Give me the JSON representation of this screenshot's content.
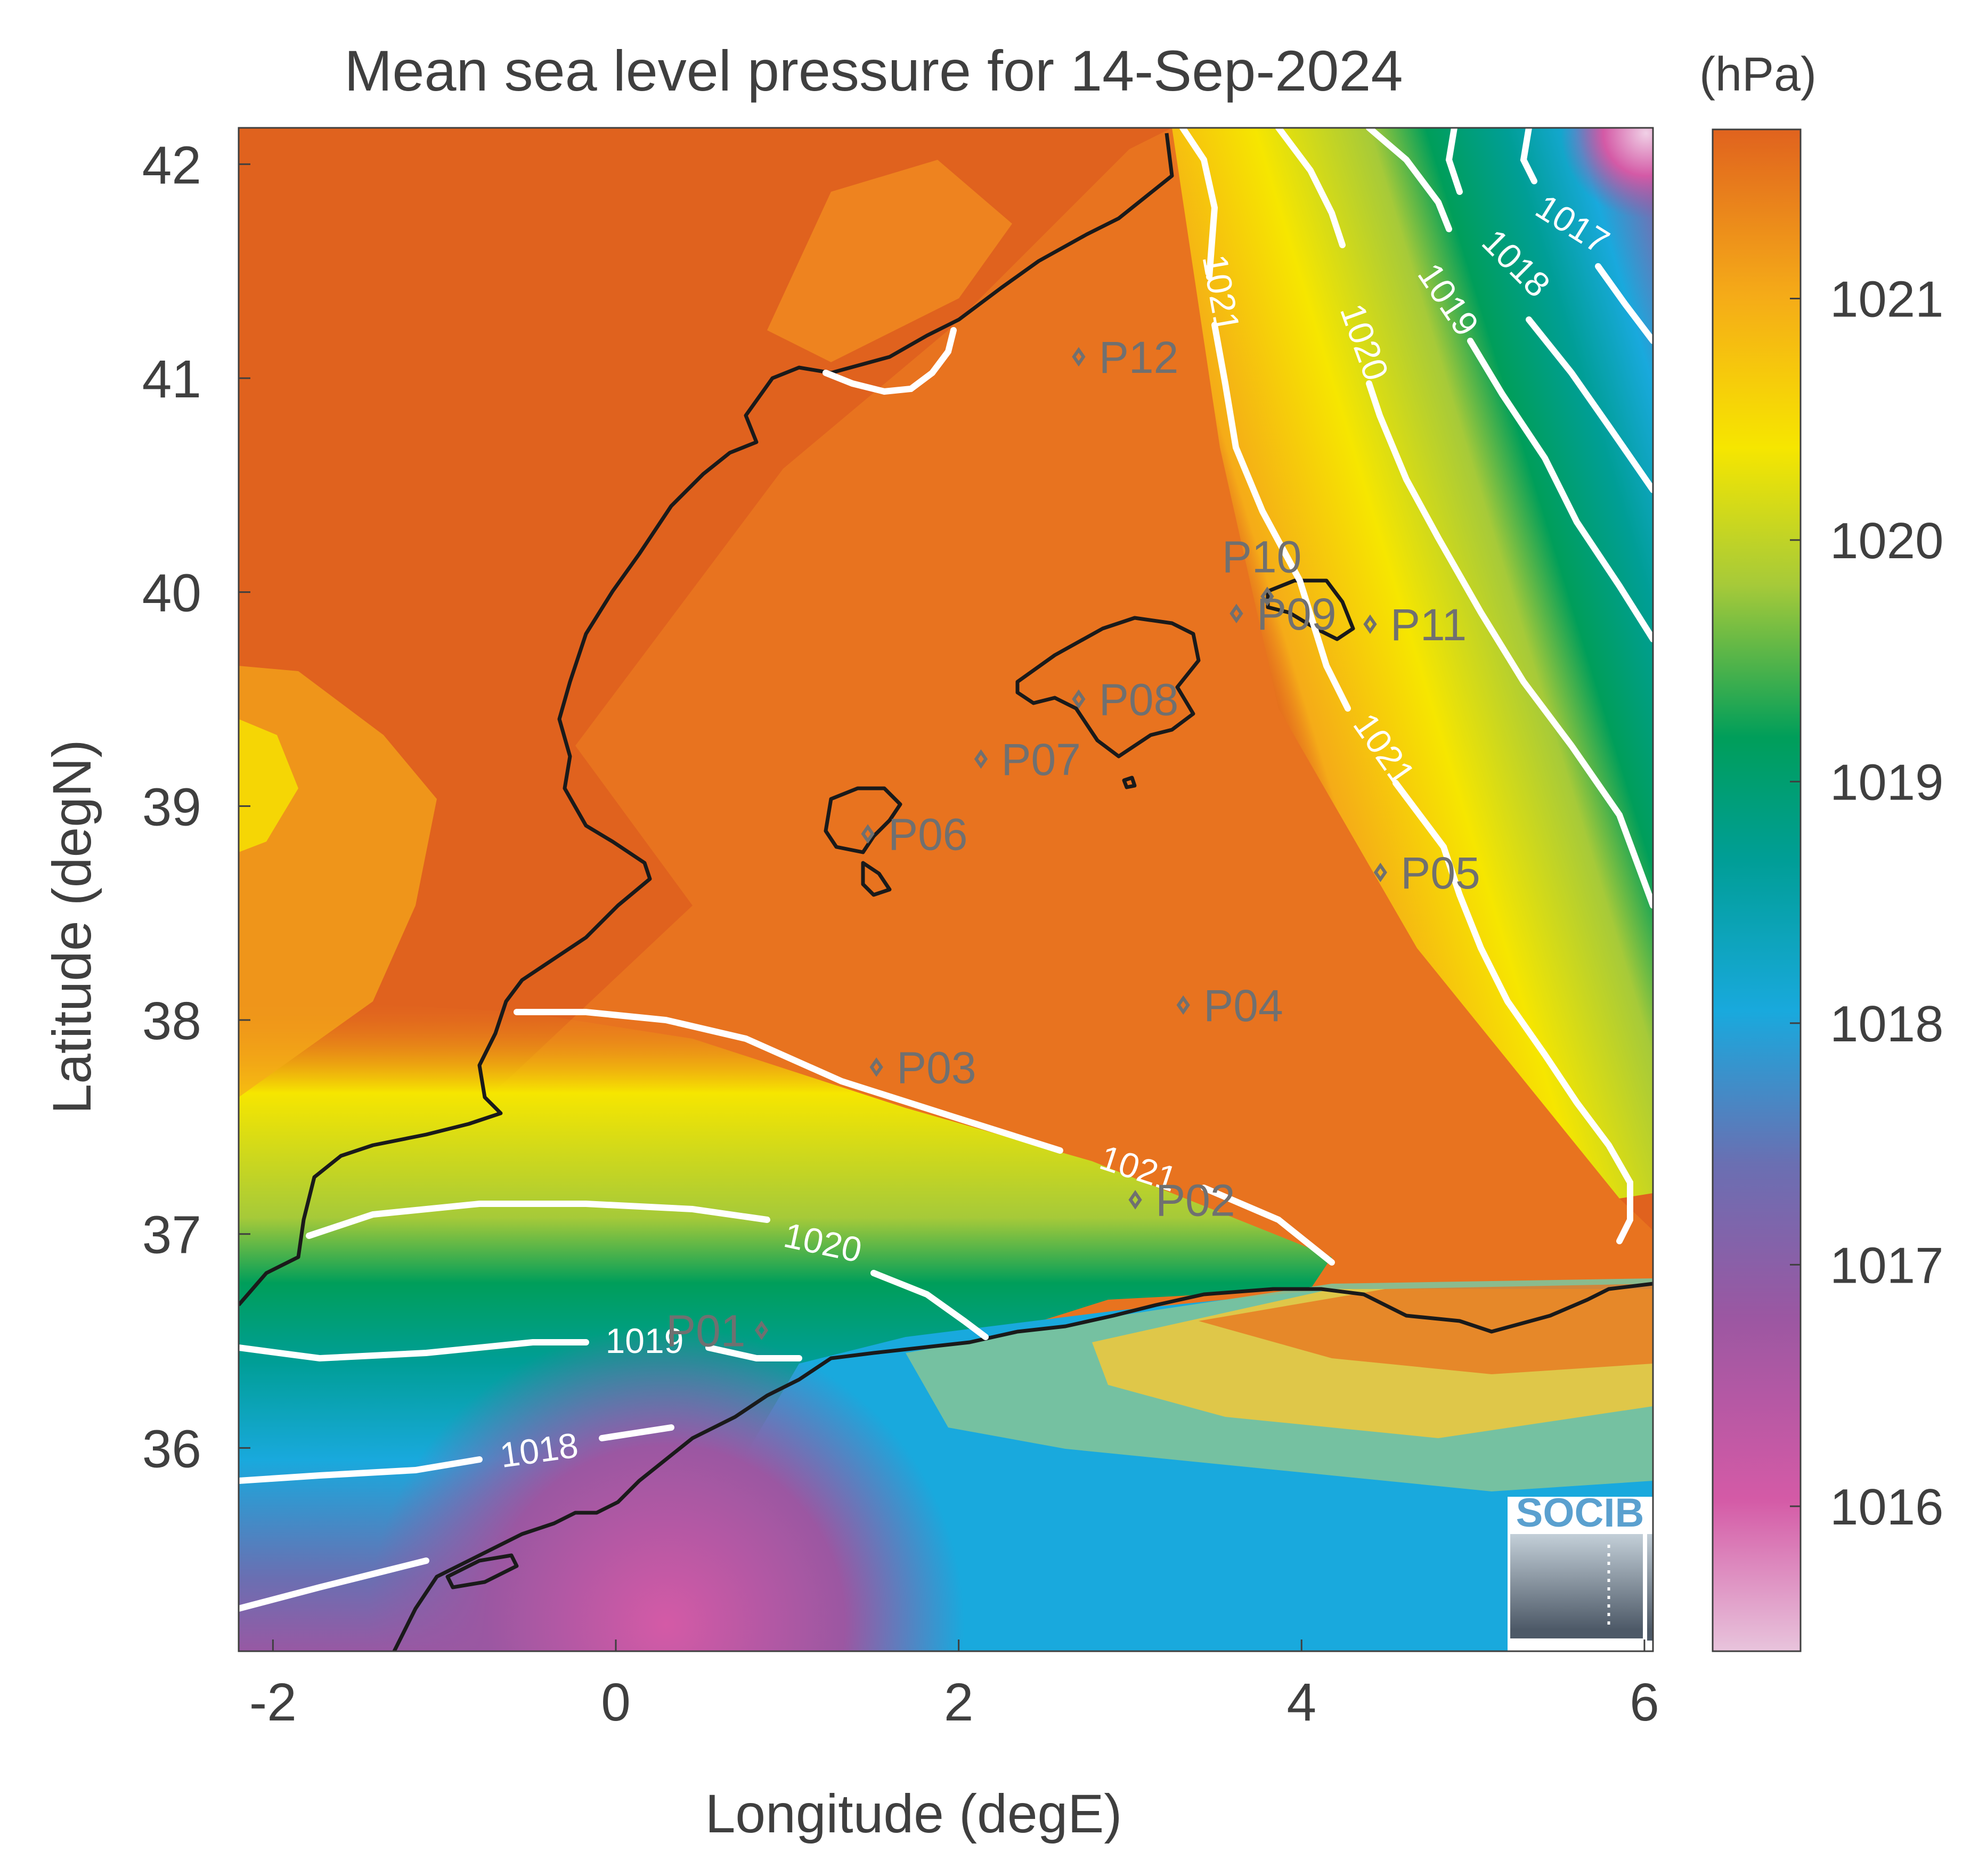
{
  "title": "Mean sea level pressure for 14-Sep-2024",
  "xlabel": "Longitude (degE)",
  "ylabel": "Latitude (degN)",
  "colorbar": {
    "unit": "(hPa)",
    "min": 1015.4,
    "max": 1021.7,
    "ticks": [
      "1016",
      "1017",
      "1018",
      "1019",
      "1020",
      "1021"
    ],
    "tick_values": [
      1016,
      1017,
      1018,
      1019,
      1020,
      1021
    ],
    "colormap": [
      "#e8c4dc",
      "#d45aa6",
      "#9b57a2",
      "#6a6fb2",
      "#19a9dd",
      "#009e96",
      "#009e5a",
      "#a6ca39",
      "#f6e600",
      "#f5ab18",
      "#e0621e"
    ]
  },
  "logo": "SOCIB",
  "chart_data": {
    "type": "heatmap",
    "title": "Mean sea level pressure for 14-Sep-2024",
    "xlabel": "Longitude (degE)",
    "ylabel": "Latitude (degN)",
    "xlim": [
      -2.2,
      6.05
    ],
    "ylim": [
      35.05,
      42.17
    ],
    "xticks": [
      "-2",
      "0",
      "2",
      "4",
      "6"
    ],
    "xtick_values": [
      -2,
      0,
      2,
      4,
      6
    ],
    "yticks": [
      "36",
      "37",
      "38",
      "39",
      "40",
      "41",
      "42"
    ],
    "ytick_values": [
      36,
      37,
      38,
      39,
      40,
      41,
      42
    ],
    "units": "hPa",
    "contour_levels": [
      "1017",
      "1018",
      "1019",
      "1020",
      "1021"
    ],
    "stations": [
      {
        "name": "P01",
        "lon": 0.85,
        "lat": 36.55
      },
      {
        "name": "P02",
        "lon": 3.03,
        "lat": 37.16
      },
      {
        "name": "P03",
        "lon": 1.52,
        "lat": 37.78
      },
      {
        "name": "P04",
        "lon": 3.31,
        "lat": 38.07
      },
      {
        "name": "P05",
        "lon": 4.46,
        "lat": 38.69
      },
      {
        "name": "P06",
        "lon": 1.47,
        "lat": 38.87
      },
      {
        "name": "P07",
        "lon": 2.13,
        "lat": 39.22
      },
      {
        "name": "P08",
        "lon": 2.7,
        "lat": 39.5
      },
      {
        "name": "P09",
        "lon": 3.62,
        "lat": 39.9
      },
      {
        "name": "P10",
        "lon": 3.8,
        "lat": 39.98
      },
      {
        "name": "P11",
        "lon": 4.4,
        "lat": 39.85
      },
      {
        "name": "P12",
        "lon": 2.7,
        "lat": 41.1
      }
    ]
  }
}
